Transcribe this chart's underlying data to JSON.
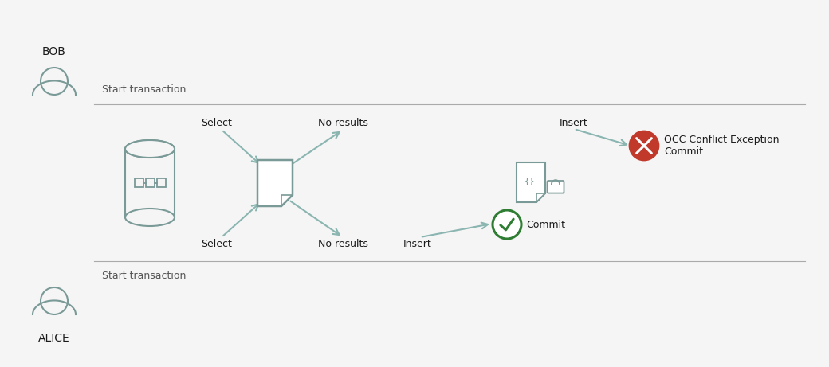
{
  "bg_color": "#f5f5f5",
  "line_color": "#aaaaaa",
  "arrow_color": "#8ab5b0",
  "text_color": "#1a1a1a",
  "icon_color": "#7a9a97",
  "green_color": "#2e7d32",
  "red_color": "#c0392b",
  "labels": {
    "alice": "ALICE",
    "bob": "BOB",
    "start_transaction": "Start transaction",
    "select_alice": "Select",
    "no_results_alice": "No results",
    "insert_alice": "Insert",
    "select_bob": "Select",
    "no_results_bob": "No results",
    "insert_bob": "Insert",
    "commit_alice": "Commit",
    "commit_bob_line1": "Commit",
    "commit_bob_line2": "OCC Conflict Exception"
  }
}
